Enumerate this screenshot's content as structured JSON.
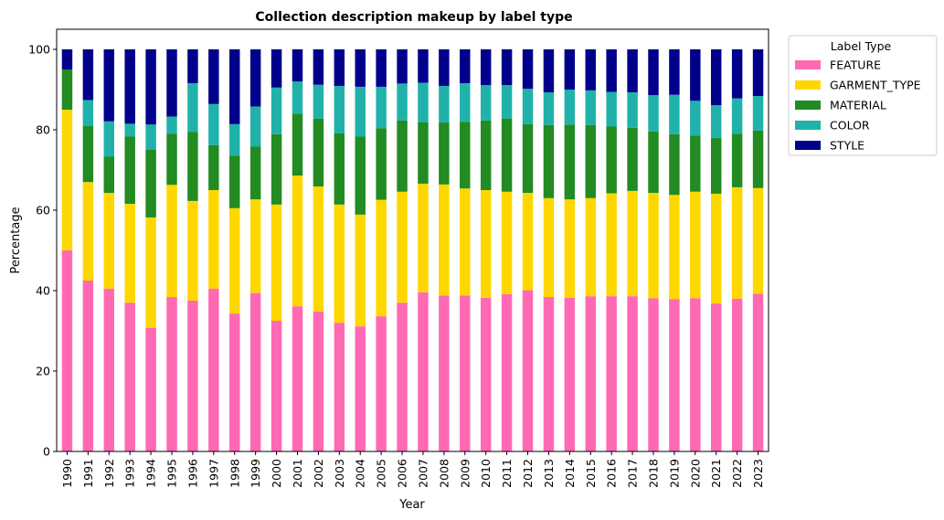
{
  "chart_data": {
    "type": "bar",
    "stacked": true,
    "title": "Collection description makeup by label type",
    "xlabel": "Year",
    "ylabel": "Percentage",
    "ylim": [
      0,
      105
    ],
    "yticks": [
      0,
      20,
      40,
      60,
      80,
      100
    ],
    "grid": false,
    "legend": {
      "title": "Label Type",
      "placement": "outside-top-right"
    },
    "categories": [
      "1990",
      "1991",
      "1992",
      "1993",
      "1994",
      "1995",
      "1996",
      "1997",
      "1998",
      "1999",
      "2000",
      "2001",
      "2002",
      "2003",
      "2004",
      "2005",
      "2006",
      "2007",
      "2008",
      "2009",
      "2010",
      "2011",
      "2012",
      "2013",
      "2014",
      "2015",
      "2016",
      "2017",
      "2018",
      "2019",
      "2020",
      "2021",
      "2022",
      "2023"
    ],
    "series": [
      {
        "name": "FEATURE",
        "color": "#ff69b4",
        "values": [
          50.0,
          42.5,
          40.5,
          37.0,
          30.7,
          38.4,
          37.5,
          40.5,
          34.3,
          39.4,
          32.5,
          36.1,
          34.8,
          32.0,
          31.1,
          33.6,
          37.0,
          39.6,
          38.8,
          38.8,
          38.2,
          39.1,
          40.1,
          38.4,
          38.2,
          38.6,
          38.6,
          38.6,
          38.1,
          37.9,
          38.1,
          36.8,
          38.0,
          39.2
        ]
      },
      {
        "name": "GARMENT_TYPE",
        "color": "#ffd700",
        "values": [
          35.0,
          24.5,
          23.8,
          24.6,
          27.5,
          27.9,
          24.8,
          24.5,
          26.2,
          23.3,
          28.9,
          32.5,
          31.1,
          29.4,
          27.8,
          29.0,
          27.6,
          27.0,
          27.6,
          26.6,
          26.8,
          25.5,
          24.2,
          24.6,
          24.5,
          24.4,
          25.6,
          26.2,
          26.2,
          25.9,
          26.5,
          27.3,
          27.7,
          26.3
        ]
      },
      {
        "name": "MATERIAL",
        "color": "#228b22",
        "values": [
          10.0,
          14.0,
          9.0,
          16.7,
          16.8,
          12.7,
          17.2,
          11.2,
          13.1,
          13.1,
          17.5,
          15.4,
          16.9,
          17.7,
          19.4,
          17.8,
          17.7,
          15.3,
          15.4,
          16.6,
          17.3,
          18.2,
          17.1,
          18.2,
          18.6,
          18.2,
          16.6,
          15.7,
          15.3,
          15.1,
          14.0,
          13.9,
          13.3,
          14.3
        ]
      },
      {
        "name": "COLOR",
        "color": "#20b2aa",
        "values": [
          0.0,
          6.4,
          8.8,
          3.2,
          6.3,
          4.3,
          12.1,
          10.2,
          7.8,
          10.0,
          11.6,
          8.0,
          8.4,
          11.8,
          12.4,
          10.3,
          9.2,
          9.8,
          9.1,
          9.6,
          8.8,
          8.3,
          8.8,
          8.1,
          8.7,
          8.6,
          8.6,
          8.8,
          9.0,
          9.8,
          8.6,
          8.1,
          8.8,
          8.6
        ]
      },
      {
        "name": "STYLE",
        "color": "#00008b",
        "values": [
          5.0,
          12.6,
          17.9,
          18.5,
          18.7,
          16.7,
          8.4,
          13.6,
          18.6,
          14.2,
          9.5,
          8.0,
          8.8,
          9.1,
          9.3,
          9.3,
          8.5,
          8.3,
          9.1,
          8.4,
          8.9,
          8.9,
          9.8,
          10.7,
          10.0,
          10.2,
          10.6,
          10.7,
          11.4,
          11.3,
          12.8,
          13.9,
          12.2,
          11.6
        ]
      }
    ]
  }
}
